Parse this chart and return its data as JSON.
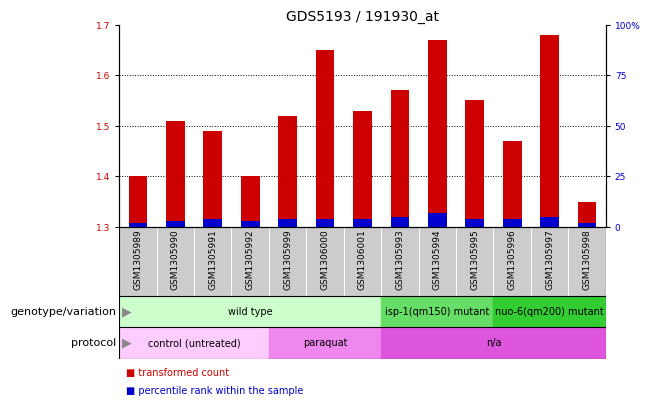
{
  "title": "GDS5193 / 191930_at",
  "samples": [
    "GSM1305989",
    "GSM1305990",
    "GSM1305991",
    "GSM1305992",
    "GSM1305999",
    "GSM1306000",
    "GSM1306001",
    "GSM1305993",
    "GSM1305994",
    "GSM1305995",
    "GSM1305996",
    "GSM1305997",
    "GSM1305998"
  ],
  "transformed_count": [
    1.4,
    1.51,
    1.49,
    1.4,
    1.52,
    1.65,
    1.53,
    1.57,
    1.67,
    1.55,
    1.47,
    1.68,
    1.35
  ],
  "percentile_rank": [
    2,
    3,
    4,
    3,
    4,
    4,
    4,
    5,
    7,
    4,
    4,
    5,
    2
  ],
  "ylim_left": [
    1.3,
    1.7
  ],
  "ylim_right": [
    0,
    100
  ],
  "yticks_left": [
    1.3,
    1.4,
    1.5,
    1.6,
    1.7
  ],
  "yticks_right": [
    0,
    25,
    50,
    75,
    100
  ],
  "bar_color_red": "#cc0000",
  "bar_color_blue": "#0000cc",
  "bar_width": 0.5,
  "baseline": 1.3,
  "genotype_groups": [
    {
      "label": "wild type",
      "start": 0,
      "end": 7,
      "color": "#ccffcc"
    },
    {
      "label": "isp-1(qm150) mutant",
      "start": 7,
      "end": 10,
      "color": "#66dd66"
    },
    {
      "label": "nuo-6(qm200) mutant",
      "start": 10,
      "end": 13,
      "color": "#33cc33"
    }
  ],
  "protocol_groups": [
    {
      "label": "control (untreated)",
      "start": 0,
      "end": 4,
      "color": "#ffccff"
    },
    {
      "label": "paraquat",
      "start": 4,
      "end": 7,
      "color": "#ee88ee"
    },
    {
      "label": "n/a",
      "start": 7,
      "end": 13,
      "color": "#dd55dd"
    }
  ],
  "legend_items": [
    {
      "label": "transformed count",
      "color": "#cc0000"
    },
    {
      "label": "percentile rank within the sample",
      "color": "#0000cc"
    }
  ],
  "row_labels": [
    "genotype/variation",
    "protocol"
  ],
  "title_fontsize": 10,
  "tick_fontsize": 6.5,
  "label_fontsize": 8,
  "annotation_fontsize": 7,
  "legend_fontsize": 7,
  "sample_bg_color": "#cccccc",
  "grid_dotted_color": "#555555",
  "left_axis_color": "#cc0000",
  "right_axis_color": "#0000cc"
}
